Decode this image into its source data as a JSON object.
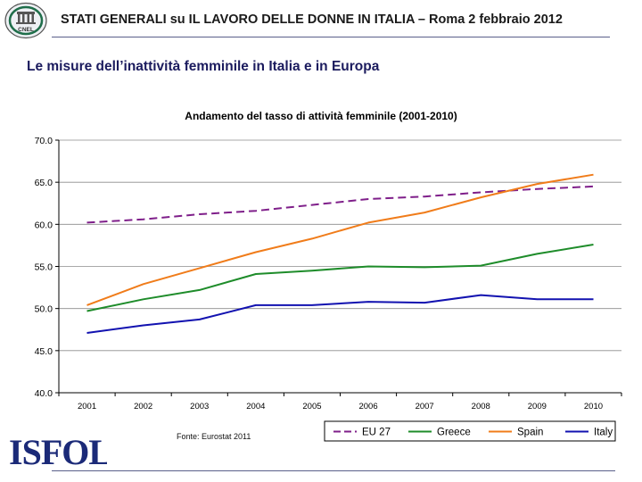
{
  "header": {
    "title": "STATI GENERALI su IL LAVORO DELLE DONNE IN ITALIA – Roma 2 febbraio 2012",
    "logo_left_label": "CNEL"
  },
  "slide": {
    "title": "Le misure dell’inattività femminile in Italia e in Europa"
  },
  "footer": {
    "source": "Fonte: Eurostat 2011",
    "logo_label": "ISFOL"
  },
  "chart_data": {
    "type": "line",
    "title": "Andamento del tasso di attività femminile (2001-2010)",
    "xlabel": "",
    "ylabel": "",
    "x": [
      "2001",
      "2002",
      "2003",
      "2004",
      "2005",
      "2006",
      "2007",
      "2008",
      "2009",
      "2010"
    ],
    "ylim": [
      40,
      70
    ],
    "yticks": [
      "40.0",
      "45.0",
      "50.0",
      "55.0",
      "60.0",
      "65.0",
      "70.0"
    ],
    "grid": true,
    "legend": "bottom-right",
    "series": [
      {
        "name": "EU 27",
        "color": "#7f1f8a",
        "dashed": true,
        "values": [
          60.2,
          60.6,
          61.2,
          61.6,
          62.3,
          63.0,
          63.3,
          63.8,
          64.2,
          64.5
        ]
      },
      {
        "name": "Greece",
        "color": "#1e8c2a",
        "dashed": false,
        "values": [
          49.7,
          51.1,
          52.2,
          54.1,
          54.5,
          55.0,
          54.9,
          55.1,
          56.5,
          57.6
        ]
      },
      {
        "name": "Spain",
        "color": "#f07c1a",
        "dashed": false,
        "values": [
          50.4,
          52.9,
          54.8,
          56.7,
          58.3,
          60.2,
          61.4,
          63.2,
          64.8,
          65.9
        ]
      },
      {
        "name": "Italy",
        "color": "#1212b0",
        "dashed": false,
        "values": [
          47.1,
          48.0,
          48.7,
          50.4,
          50.4,
          50.8,
          50.7,
          51.6,
          51.1,
          51.1
        ]
      }
    ]
  }
}
